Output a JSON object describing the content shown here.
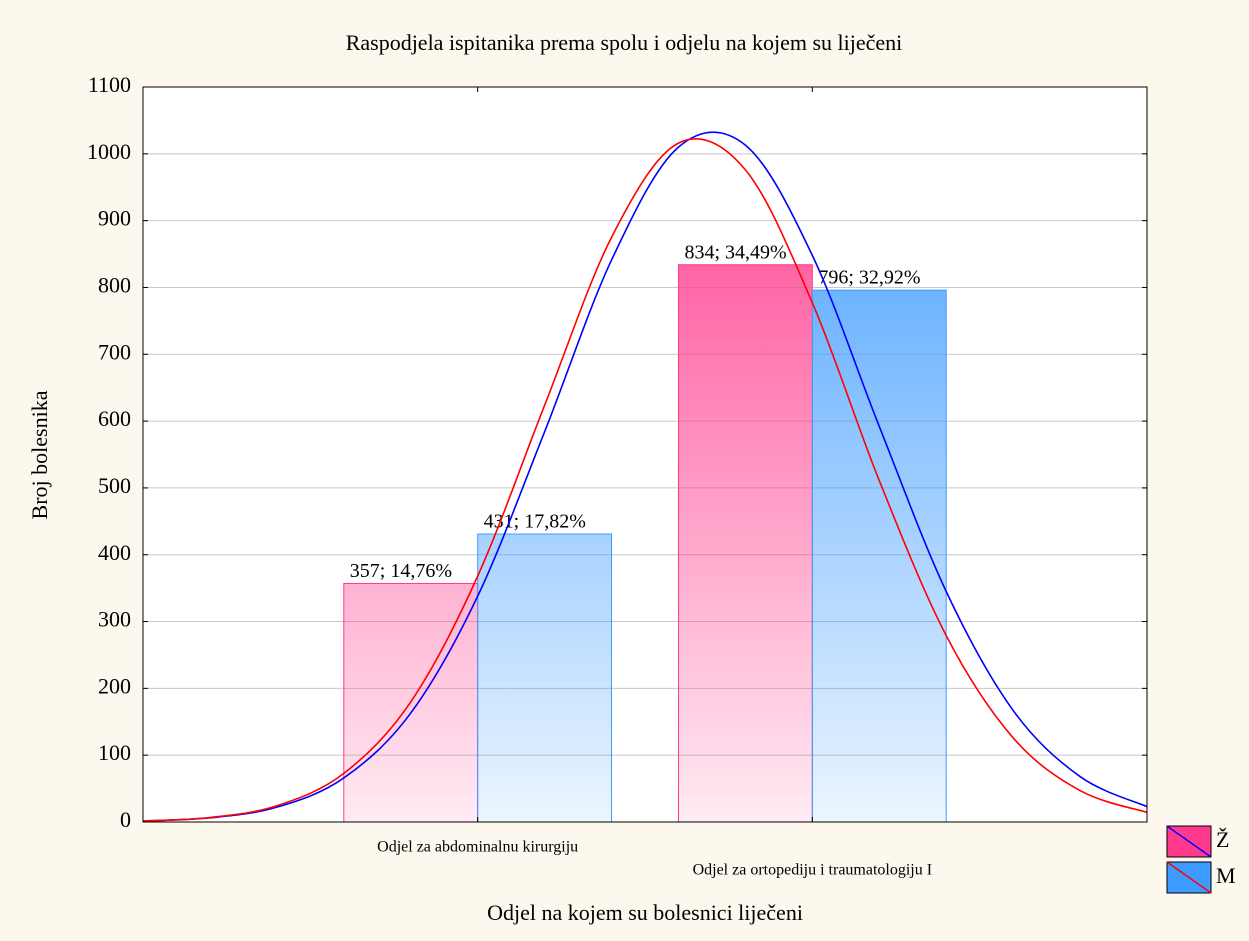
{
  "chart_data": {
    "type": "bar",
    "title": "Raspodjela ispitanika prema spolu i odjelu na kojem su liječeni",
    "x_label": "Odjel na kojem su bolesnici liječeni",
    "y_label": "Broj bolesnika",
    "categories": [
      "Odjel za abdominalnu kirurgiju",
      "Odjel za ortopediju i traumatologiju I"
    ],
    "xlim": [
      0,
      3
    ],
    "ylim": [
      0,
      1100
    ],
    "yticks": [
      0,
      100,
      200,
      300,
      400,
      500,
      600,
      700,
      800,
      900,
      1000,
      1100
    ],
    "grid": true,
    "legend": "bottom-right",
    "fit_x": [
      0,
      0.2,
      0.4,
      0.6,
      0.8,
      1.0,
      1.2,
      1.4,
      1.6,
      1.8,
      2.0,
      2.2,
      2.4,
      2.6,
      2.8,
      3.0
    ],
    "series": [
      {
        "name": "Ž",
        "color": "#ff3a8c",
        "values": [
          357,
          834
        ],
        "value_labels": [
          "357; 14,76%",
          "834; 34,49%"
        ],
        "fit": {
          "color": "#0000ff",
          "values": [
            1.5,
            6.2,
            22.2,
            65.9,
            163,
            338,
            584,
            841,
            1010,
            1013,
            848,
            592,
            345,
            167,
            68,
            23
          ]
        }
      },
      {
        "name": "M",
        "color": "#3d9bff",
        "values": [
          431,
          796
        ],
        "value_labels": [
          "431; 17,82%",
          "796; 32,92%"
        ],
        "fit": {
          "color": "#ff0000",
          "values": [
            1.5,
            6.7,
            24.3,
            72.7,
            179.7,
            368,
            623.6,
            875,
            1016,
            976,
            777,
            511,
            279,
            126,
            47,
            14.5
          ]
        }
      }
    ]
  }
}
